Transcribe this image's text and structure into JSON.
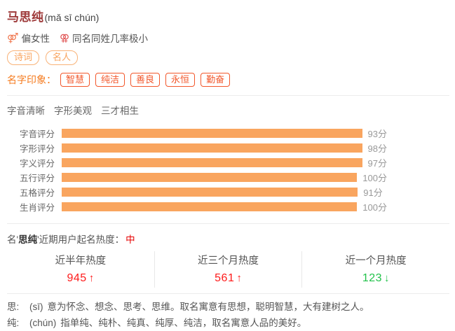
{
  "colors": {
    "title_red": "#9e3a3a",
    "accent_orange": "#f57b1f",
    "tag_orange_red": "#f2572b",
    "pill_orange": "#f9a35d",
    "bar_orange": "#f9a55f",
    "trend_up_red": "#fe1a1a",
    "trend_down_green": "#21c24a",
    "level_red": "#e60000"
  },
  "header": {
    "name": "马思纯",
    "pinyin": "(mǎ sī chún)",
    "gender_icon": "⚤",
    "gender_text": "偏女性",
    "same_name_icon": "⚢",
    "same_name_text": "同名同姓几率极小",
    "tags": {
      "0": "诗词",
      "1": "名人"
    }
  },
  "impression": {
    "label": "名字印象：",
    "tags": {
      "0": "智慧",
      "1": "纯洁",
      "2": "善良",
      "3": "永恒",
      "4": "勤奋"
    }
  },
  "features": {
    "0": "字音清晰",
    "1": "字形美观",
    "2": "三才相生"
  },
  "chart_data": {
    "type": "bar",
    "orientation": "horizontal",
    "categories": {
      "0": "字音评分",
      "1": "字形评分",
      "2": "字义评分",
      "3": "五行评分",
      "4": "五格评分",
      "5": "生肖评分"
    },
    "values": [
      93,
      98,
      97,
      100,
      91,
      100
    ],
    "value_labels": {
      "0": "93分",
      "1": "98分",
      "2": "97分",
      "3": "100分",
      "4": "91分",
      "5": "100分"
    },
    "xlim": [
      0,
      100
    ],
    "grid": false,
    "bar_color": "#f9a55f"
  },
  "popularity": {
    "prefix": "名'",
    "name": "思纯",
    "suffix": "'近期用户起名热度：",
    "level": "中",
    "columns": [
      {
        "label": "近半年热度",
        "value": "945",
        "arrow": "↑",
        "trend": "up"
      },
      {
        "label": "近三个月热度",
        "value": "561",
        "arrow": "↑",
        "trend": "up"
      },
      {
        "label": "近一个月热度",
        "value": "123",
        "arrow": "↓",
        "trend": "down"
      }
    ]
  },
  "meanings": [
    {
      "char": "思:",
      "pinyin": "(sī)",
      "text": "意为怀念、想念、思考、思维。取名寓意有思想，聪明智慧，大有建树之人。"
    },
    {
      "char": "纯:",
      "pinyin": "(chún)",
      "text": "指单纯、纯朴、纯真、纯厚、纯洁，取名寓意人品的美好。"
    }
  ]
}
